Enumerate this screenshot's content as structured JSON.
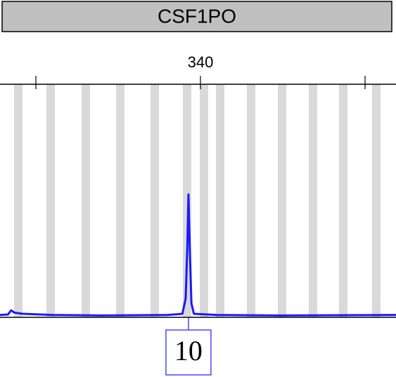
{
  "chart_data": {
    "type": "line",
    "title": "CSF1PO",
    "xlim": [
      327.82,
      351.88
    ],
    "xticks": [
      340
    ],
    "ylim": [
      0,
      100
    ],
    "series": [
      {
        "color": "#1a1aff",
        "x": [
          327.82,
          328.3,
          328.5,
          328.7,
          329.2,
          331,
          334,
          338,
          338.9,
          339.1,
          339.2,
          339.27,
          339.35,
          339.45,
          339.6,
          341,
          345,
          351.88
        ],
        "values": [
          1,
          1.2,
          3,
          2,
          1.5,
          1,
          0.8,
          1,
          1.5,
          8,
          30,
          52.7,
          30,
          6,
          1.5,
          1,
          0.8,
          1
        ]
      }
    ],
    "allele_labels": [
      {
        "label": "10",
        "x": 339.27
      }
    ]
  }
}
